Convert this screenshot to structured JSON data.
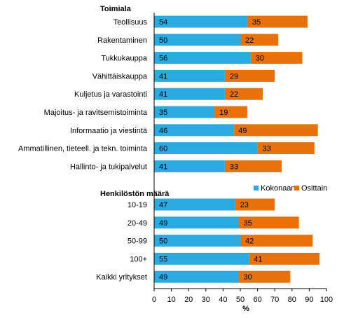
{
  "chart_data": {
    "type": "bar",
    "orientation": "horizontal",
    "stacked": true,
    "groups": [
      {
        "label": "Toimiala",
        "categories": [
          "Teollisuus",
          "Rakentaminen",
          "Tukkukauppa",
          "Vähittäiskauppa",
          "Kuljetus ja varastointi",
          "Majoitus- ja ravitsemistoiminta",
          "Informaatio ja viestintä",
          "Ammatillinen, tieteell. ja tekn. toiminta",
          "Hallinto- ja tukipalvelut"
        ]
      },
      {
        "label": "Henkilöstön määrä",
        "categories": [
          "10-19",
          "20-49",
          "50-99",
          "100+",
          "Kaikki yritykset"
        ]
      }
    ],
    "categories": [
      "Teollisuus",
      "Rakentaminen",
      "Tukkukauppa",
      "Vähittäiskauppa",
      "Kuljetus ja varastointi",
      "Majoitus- ja ravitsemistoiminta",
      "Informaatio ja viestintä",
      "Ammatillinen, tieteell. ja tekn. toiminta",
      "Hallinto- ja tukipalvelut",
      "10-19",
      "20-49",
      "50-99",
      "100+",
      "Kaikki yritykset"
    ],
    "series": [
      {
        "name": "Kokonaan",
        "color": "#29ABE2",
        "values": [
          54,
          50,
          56,
          41,
          41,
          35,
          46,
          60,
          41,
          47,
          49,
          50,
          55,
          49
        ]
      },
      {
        "name": "Osittain",
        "color": "#E8710A",
        "values": [
          35,
          22,
          30,
          29,
          22,
          19,
          49,
          33,
          33,
          23,
          35,
          42,
          41,
          30
        ]
      }
    ],
    "xlabel": "%",
    "ylabel": "",
    "xlim": [
      0,
      100
    ],
    "xticks": [
      0,
      10,
      20,
      30,
      40,
      50,
      60,
      70,
      80,
      90,
      100
    ],
    "grid": false,
    "legend": "right, between groups"
  }
}
